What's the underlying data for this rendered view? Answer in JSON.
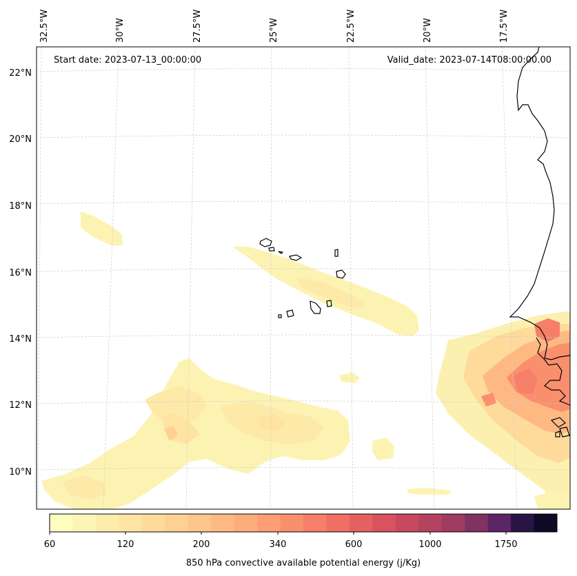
{
  "map": {
    "start_date_text": "Start date: 2023-07-13_00:00:00",
    "valid_date_text": "Valid_date: 2023-07-14T08:00:00.00",
    "longitude_labels": [
      "32.5°W",
      "30°W",
      "27.5°W",
      "25°W",
      "22.5°W",
      "20°W",
      "17.5°W"
    ],
    "latitude_labels": [
      "22°N",
      "20°N",
      "18°N",
      "16°N",
      "14°N",
      "12°N",
      "10°N"
    ]
  },
  "colorbar": {
    "title": "850 hPa convective available potential energy (j/Kg)",
    "tick_labels": [
      "60",
      "120",
      "200",
      "340",
      "600",
      "1000",
      "1750"
    ],
    "colors": [
      "#fcfdbf",
      "#fcf5b6",
      "#fdedac",
      "#fde4a3",
      "#fedb9a",
      "#fed192",
      "#fec68a",
      "#feb983",
      "#fdac7c",
      "#fd9e75",
      "#fa8f6e",
      "#f57f68",
      "#ef6f63",
      "#e56060",
      "#d8535f",
      "#c8495f",
      "#b5425f",
      "#a03c60",
      "#7f3363",
      "#5c2566",
      "#2a1445",
      "#0e0a26"
    ]
  },
  "legend_colors": {
    "coastline": "#000000",
    "grid": "#cccccc"
  }
}
